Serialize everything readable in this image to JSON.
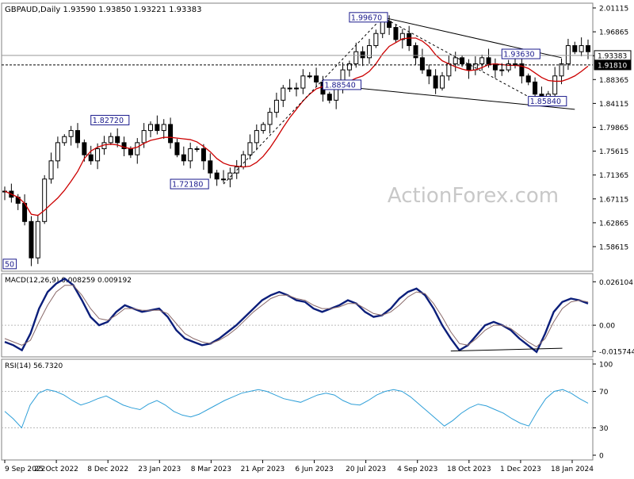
{
  "header": {
    "symbol": "GBPAUD,Daily",
    "ohlc": "1.93590 1.93850 1.93221 1.93383"
  },
  "watermark": "ActionForex.com",
  "colors": {
    "candle": "#000000",
    "ma": "#cc0000",
    "macd_main": "#0b1e7a",
    "macd_signal": "#8a6a6a",
    "rsi": "#2e9fd8",
    "trendline": "#000000",
    "label_border": "#1a1a8c",
    "label_text": "#1a1a8c",
    "watermark": "#c8c8c8",
    "frame": "#808080"
  },
  "chart_data": [
    {
      "type": "candlestick",
      "panel": "price",
      "title": "GBPAUD,Daily",
      "ylim": [
        1.578,
        2.02
      ],
      "y_ticks": [
        "2.01115",
        "1.96865",
        "1.92620",
        "1.88365",
        "1.84115",
        "1.79865",
        "1.75615",
        "1.71365",
        "1.67115",
        "1.62865",
        "1.58615"
      ],
      "price_marks": [
        "1.93383",
        "1.91810"
      ],
      "price_lines": [
        1.93383,
        1.9181
      ],
      "annotations": [
        "1.99670",
        "1.93630",
        "1.88540",
        "1.85840",
        "1.82720",
        "1.72180",
        "50"
      ],
      "ma_name": "",
      "close_series": [
        1.71,
        1.7,
        1.69,
        1.66,
        1.6,
        1.66,
        1.73,
        1.76,
        1.79,
        1.8,
        1.81,
        1.79,
        1.77,
        1.76,
        1.78,
        1.79,
        1.8,
        1.79,
        1.78,
        1.77,
        1.79,
        1.81,
        1.82,
        1.81,
        1.82,
        1.79,
        1.77,
        1.76,
        1.78,
        1.78,
        1.76,
        1.74,
        1.73,
        1.73,
        1.74,
        1.75,
        1.77,
        1.79,
        1.81,
        1.82,
        1.84,
        1.86,
        1.88,
        1.88,
        1.88,
        1.9,
        1.9,
        1.89,
        1.87,
        1.86,
        1.88,
        1.91,
        1.92,
        1.94,
        1.93,
        1.95,
        1.97,
        1.99,
        1.98,
        1.96,
        1.97,
        1.95,
        1.93,
        1.91,
        1.9,
        1.88,
        1.9,
        1.92,
        1.93,
        1.92,
        1.91,
        1.92,
        1.93,
        1.92,
        1.91,
        1.91,
        1.92,
        1.92,
        1.9,
        1.89,
        1.87,
        1.86,
        1.87,
        1.9,
        1.92,
        1.95,
        1.94,
        1.95,
        1.94
      ]
    },
    {
      "type": "line",
      "panel": "macd",
      "title": "MACD(12,26,9) 0.008259 0.009192",
      "ylim": [
        -0.019,
        0.031
      ],
      "y_ticks": [
        "0.026104",
        "0.00",
        "-0.015744"
      ],
      "series": [
        {
          "name": "",
          "values": [
            -0.01,
            -0.012,
            -0.015,
            -0.005,
            0.01,
            0.02,
            0.025,
            0.028,
            0.024,
            0.015,
            0.005,
            0.0,
            0.002,
            0.008,
            0.012,
            0.01,
            0.008,
            0.009,
            0.01,
            0.005,
            -0.003,
            -0.008,
            -0.01,
            -0.012,
            -0.011,
            -0.008,
            -0.004,
            0.0,
            0.005,
            0.01,
            0.015,
            0.018,
            0.02,
            0.018,
            0.015,
            0.014,
            0.01,
            0.008,
            0.01,
            0.012,
            0.015,
            0.013,
            0.008,
            0.005,
            0.006,
            0.01,
            0.016,
            0.02,
            0.022,
            0.018,
            0.01,
            0.0,
            -0.008,
            -0.015,
            -0.012,
            -0.006,
            0.0,
            0.002,
            0.0,
            -0.003,
            -0.008,
            -0.012,
            -0.016,
            -0.005,
            0.008,
            0.014,
            0.016,
            0.015,
            0.013
          ]
        },
        {
          "name": "",
          "values": [
            -0.008,
            -0.01,
            -0.012,
            -0.009,
            0.002,
            0.012,
            0.02,
            0.024,
            0.024,
            0.018,
            0.01,
            0.004,
            0.003,
            0.006,
            0.01,
            0.01,
            0.009,
            0.009,
            0.009,
            0.007,
            0.001,
            -0.005,
            -0.008,
            -0.01,
            -0.011,
            -0.009,
            -0.006,
            -0.002,
            0.003,
            0.008,
            0.012,
            0.016,
            0.018,
            0.018,
            0.016,
            0.015,
            0.012,
            0.01,
            0.01,
            0.011,
            0.013,
            0.013,
            0.01,
            0.007,
            0.006,
            0.008,
            0.012,
            0.017,
            0.02,
            0.019,
            0.013,
            0.005,
            -0.004,
            -0.011,
            -0.012,
            -0.008,
            -0.003,
            0.0,
            0.0,
            -0.002,
            -0.006,
            -0.01,
            -0.013,
            -0.008,
            0.002,
            0.01,
            0.014,
            0.015,
            0.014
          ]
        }
      ]
    },
    {
      "type": "line",
      "panel": "rsi",
      "title": "RSI(14) 56.7320",
      "ylim": [
        0,
        100
      ],
      "y_ticks": [
        "100",
        "70",
        "30",
        "0"
      ],
      "series": [
        {
          "name": "",
          "values": [
            48,
            40,
            30,
            55,
            68,
            72,
            70,
            66,
            60,
            55,
            58,
            62,
            65,
            60,
            55,
            52,
            50,
            56,
            60,
            55,
            48,
            44,
            42,
            45,
            50,
            55,
            60,
            64,
            68,
            70,
            72,
            70,
            66,
            62,
            60,
            58,
            62,
            66,
            68,
            66,
            60,
            56,
            55,
            60,
            66,
            70,
            72,
            70,
            64,
            56,
            48,
            40,
            32,
            38,
            46,
            52,
            56,
            54,
            50,
            46,
            40,
            35,
            32,
            48,
            62,
            70,
            72,
            68,
            62,
            57
          ]
        }
      ],
      "x_ticks": [
        "9 Sep 2022",
        "25 Oct 2022",
        "8 Dec 2022",
        "23 Jan 2023",
        "8 Mar 2023",
        "21 Apr 2023",
        "6 Jun 2023",
        "20 Jul 2023",
        "4 Sep 2023",
        "18 Oct 2023",
        "1 Dec 2023",
        "18 Jan 2024"
      ]
    }
  ]
}
